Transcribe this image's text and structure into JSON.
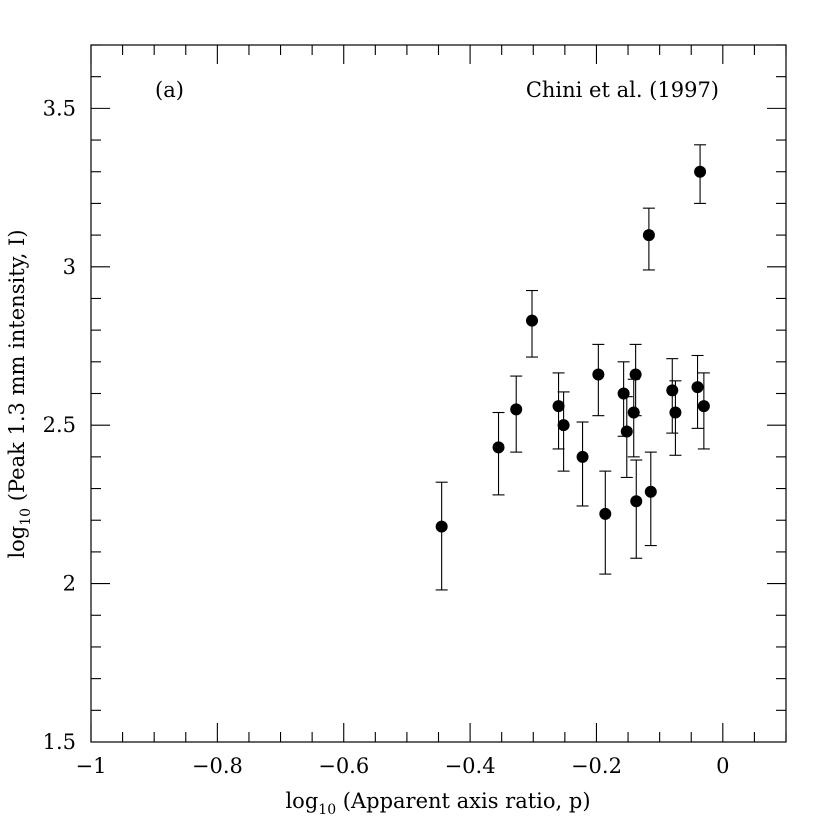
{
  "chart_data": {
    "type": "scatter",
    "title": "",
    "panel_label": "(a)",
    "citation": "Chini et al. (1997)",
    "xlabel": {
      "prefix": "log",
      "sub": "10",
      "suffix": " (Apparent axis ratio, p)"
    },
    "ylabel": {
      "prefix": "log",
      "sub": "10",
      "suffix": " (Peak 1.3 mm intensity, I)"
    },
    "xlim": [
      -1.0,
      0.1
    ],
    "ylim": [
      1.5,
      3.7
    ],
    "x_major_ticks": [
      -1.0,
      -0.8,
      -0.6,
      -0.4,
      -0.2,
      0.0
    ],
    "x_tick_labels": [
      "−1",
      "−0.8",
      "−0.6",
      "−0.4",
      "−0.2",
      "0"
    ],
    "x_minor_step": 0.05,
    "y_major_ticks": [
      1.5,
      2.0,
      2.5,
      3.0,
      3.5
    ],
    "y_tick_labels": [
      "1.5",
      "2",
      "2.5",
      "3",
      "3.5"
    ],
    "y_minor_step": 0.1,
    "grid": false,
    "points": [
      {
        "x": -0.445,
        "y": 2.18,
        "err_low": 0.2,
        "err_high": 0.14
      },
      {
        "x": -0.355,
        "y": 2.43,
        "err_low": 0.15,
        "err_high": 0.11
      },
      {
        "x": -0.327,
        "y": 2.55,
        "err_low": 0.135,
        "err_high": 0.105
      },
      {
        "x": -0.302,
        "y": 2.83,
        "err_low": 0.115,
        "err_high": 0.095
      },
      {
        "x": -0.26,
        "y": 2.56,
        "err_low": 0.135,
        "err_high": 0.105
      },
      {
        "x": -0.252,
        "y": 2.5,
        "err_low": 0.145,
        "err_high": 0.105
      },
      {
        "x": -0.222,
        "y": 2.4,
        "err_low": 0.155,
        "err_high": 0.11
      },
      {
        "x": -0.197,
        "y": 2.66,
        "err_low": 0.13,
        "err_high": 0.095
      },
      {
        "x": -0.186,
        "y": 2.22,
        "err_low": 0.19,
        "err_high": 0.135
      },
      {
        "x": -0.157,
        "y": 2.6,
        "err_low": 0.135,
        "err_high": 0.1
      },
      {
        "x": -0.152,
        "y": 2.48,
        "err_low": 0.145,
        "err_high": 0.11
      },
      {
        "x": -0.141,
        "y": 2.54,
        "err_low": 0.14,
        "err_high": 0.105
      },
      {
        "x": -0.138,
        "y": 2.66,
        "err_low": 0.13,
        "err_high": 0.095
      },
      {
        "x": -0.137,
        "y": 2.26,
        "err_low": 0.18,
        "err_high": 0.13
      },
      {
        "x": -0.117,
        "y": 3.1,
        "err_low": 0.11,
        "err_high": 0.085
      },
      {
        "x": -0.114,
        "y": 2.29,
        "err_low": 0.17,
        "err_high": 0.125
      },
      {
        "x": -0.08,
        "y": 2.61,
        "err_low": 0.135,
        "err_high": 0.1
      },
      {
        "x": -0.075,
        "y": 2.54,
        "err_low": 0.135,
        "err_high": 0.1
      },
      {
        "x": -0.04,
        "y": 2.62,
        "err_low": 0.13,
        "err_high": 0.1
      },
      {
        "x": -0.036,
        "y": 3.3,
        "err_low": 0.1,
        "err_high": 0.085
      },
      {
        "x": -0.03,
        "y": 2.56,
        "err_low": 0.135,
        "err_high": 0.105
      }
    ]
  }
}
